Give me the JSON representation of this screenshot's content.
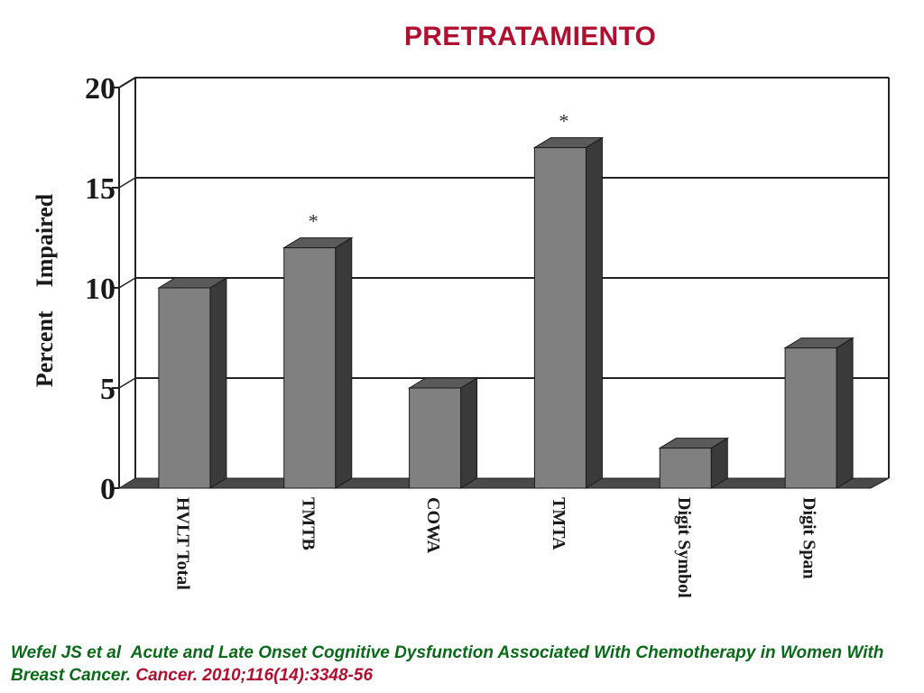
{
  "slide_title": "PRETRATAMIENTO",
  "citation": {
    "authors": "Wefel JS et al",
    "article": "Acute and Late Onset Cognitive Dysfunction Associated With Chemotherapy in Women With Breast Cancer.",
    "journal": "Cancer. 2010;116(14):3348-56"
  },
  "chart_data": {
    "type": "bar",
    "style": "3d",
    "categories": [
      "HVLT Total",
      "TMTB",
      "COWA",
      "TMTA",
      "Digit Symbol",
      "Digit Span"
    ],
    "values": [
      10,
      12,
      5,
      17,
      2,
      7
    ],
    "significant": [
      "",
      "*",
      "",
      "*",
      "",
      ""
    ],
    "ylabel": "Percent    Impaired",
    "xlabel": "",
    "title": "",
    "ylim": [
      0,
      20
    ],
    "yticks": [
      0,
      5,
      10,
      15,
      20
    ],
    "grid": true,
    "legend": "none",
    "bar_color": "#808080",
    "bar_side_color": "#3a3a3a",
    "bar_top_color": "#5a5a5a"
  }
}
